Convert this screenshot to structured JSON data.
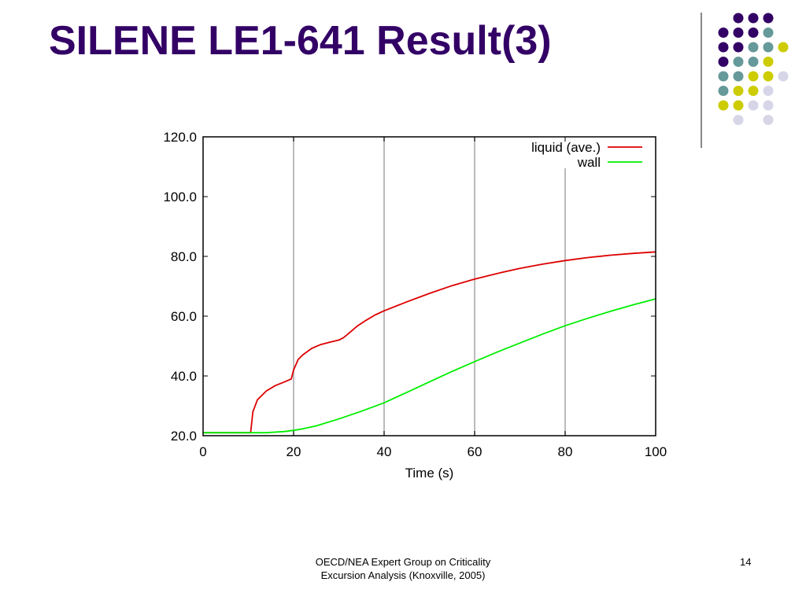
{
  "slide": {
    "title": "SILENE LE1-641 Result(3)",
    "footer_line1": "OECD/NEA Expert Group on Criticality",
    "footer_line2": "Excursion Analysis (Knoxville, 2005)",
    "page_number": "14"
  },
  "theme": {
    "title_color": "#330066",
    "dot_colors": {
      "purple": "#330066",
      "teal": "#669999",
      "yellow": "#CCCC00",
      "lavender": "#D6D6E8"
    }
  },
  "chart_data": {
    "type": "line",
    "title": "",
    "xlabel": "Time (s)",
    "ylabel": "",
    "xlim": [
      0,
      100
    ],
    "ylim": [
      20,
      120
    ],
    "xticks": [
      "0",
      "20",
      "40",
      "60",
      "80",
      "100"
    ],
    "yticks": [
      "20.0",
      "40.0",
      "60.0",
      "80.0",
      "100.0",
      "120.0"
    ],
    "grid": true,
    "legend_position": "top-right",
    "series": [
      {
        "name": "liquid (ave.)",
        "color": "#DD0000",
        "x": [
          0,
          10.5,
          11,
          12,
          14,
          16,
          18,
          19.5,
          20,
          21,
          22,
          24,
          26,
          28,
          30,
          31,
          32,
          34,
          36,
          38,
          40,
          45,
          50,
          55,
          60,
          65,
          70,
          75,
          80,
          85,
          90,
          95,
          100
        ],
        "y": [
          21,
          21,
          28,
          32,
          35,
          36.8,
          38,
          39,
          42,
          45.5,
          47,
          49.2,
          50.5,
          51.3,
          52,
          52.8,
          54,
          56.6,
          58.6,
          60.4,
          61.8,
          64.8,
          67.6,
          70.2,
          72.4,
          74.3,
          76,
          77.4,
          78.6,
          79.6,
          80.4,
          81,
          81.5
        ]
      },
      {
        "name": "wall",
        "color": "#00EE00",
        "x": [
          0,
          10,
          14,
          18,
          20,
          22,
          25,
          30,
          35,
          40,
          45,
          50,
          55,
          60,
          65,
          70,
          75,
          80,
          85,
          90,
          95,
          100
        ],
        "y": [
          21,
          21,
          21,
          21.4,
          21.8,
          22.3,
          23.3,
          25.6,
          28.2,
          31,
          34.5,
          38,
          41.5,
          44.8,
          48,
          51,
          54,
          56.8,
          59.3,
          61.6,
          63.8,
          65.8
        ]
      }
    ]
  }
}
